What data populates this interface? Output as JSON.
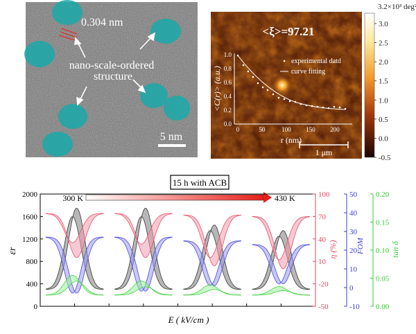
{
  "tem": {
    "lattice_label": "0.304 nm",
    "annotation_line1": "nano-scale-ordered",
    "annotation_line2": "structure",
    "scalebar_label": "5 nm"
  },
  "strain_map": {
    "colorbar": {
      "max_label": "3.2×10³ deg²",
      "ticks": [
        "3.0",
        "2.5",
        "2.0",
        "1.5",
        "1.0",
        "0.5",
        "0.0",
        "-0.5"
      ]
    },
    "xi_label": "<ξ>=97.21",
    "scalebar_label": "1 μm",
    "inset": {
      "ylabel": "<C(r)> (a.u.)",
      "xlabel": "r (nm)",
      "legend_points": "experimental datd",
      "legend_line": "curve fitting"
    }
  },
  "chart_data": {
    "type": "line",
    "title": "15 h with ACB",
    "arrow_left_label": "300 K",
    "arrow_right_label": "430 K",
    "xlabel": "E ( kV/cm )",
    "xlim": [
      0,
      4
    ],
    "series": [
      {
        "name": "ε_r",
        "color": "#2f2f2f",
        "ylim": [
          0,
          2000
        ],
        "ticks": [
          "0",
          "400",
          "800",
          "1200",
          "1600",
          "2000"
        ],
        "peaks": [
          [
            300,
            1600,
            1750
          ],
          [
            300,
            1600,
            1750
          ],
          [
            300,
            1350,
            1450
          ],
          [
            300,
            1250,
            1350
          ]
        ]
      },
      {
        "name": "η (%)",
        "color": "#e5455f",
        "ylim": [
          -50,
          100
        ],
        "ticks": [
          "-50",
          "-20",
          "10",
          "40",
          "70",
          "100"
        ],
        "peaks": [
          [
            74,
            35,
            15
          ],
          [
            74,
            33,
            15
          ],
          [
            72,
            15,
            4
          ],
          [
            70,
            12,
            0
          ]
        ]
      },
      {
        "name": "FOM",
        "color": "#3b3bd1",
        "ylim": [
          -10,
          50
        ],
        "ticks": [
          "-10",
          "0",
          "10",
          "20",
          "30",
          "40",
          "50"
        ],
        "peaks": [
          [
            27,
            -3,
            -3
          ],
          [
            27,
            -2,
            -2
          ],
          [
            25,
            1,
            1
          ],
          [
            23,
            2,
            2
          ]
        ]
      },
      {
        "name": "tan δ",
        "color": "#33cc33",
        "ylim": [
          0,
          0.2
        ],
        "ticks": [
          "0.00",
          "0.05",
          "0.10",
          "0.15",
          "0.20"
        ],
        "peaks": [
          [
            0.02,
            0.055,
            0.045
          ],
          [
            0.02,
            0.045,
            0.035
          ],
          [
            0.02,
            0.038,
            0.03
          ],
          [
            0.02,
            0.035,
            0.028
          ]
        ]
      }
    ],
    "ylabel_er": "εr",
    "ylabel_eta": "η (%)",
    "ylabel_fom": "FOM",
    "ylabel_tand": "tan  δ"
  }
}
